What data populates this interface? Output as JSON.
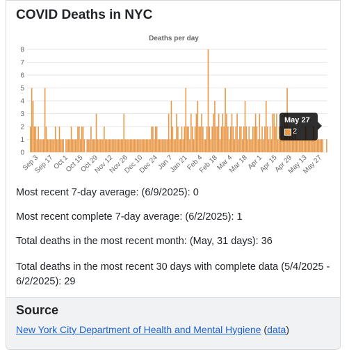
{
  "page": {
    "title": "COVID Deaths in NYC"
  },
  "colors": {
    "bar": "#e8994a",
    "bar_stroke": "#d9843a",
    "grid": "#e6e6e6",
    "link": "#1a5fd0"
  },
  "chart_data": {
    "type": "bar",
    "title": "Deaths per day",
    "xlabel": "",
    "ylabel": "",
    "ylim": [
      0,
      8
    ],
    "yticks": [
      0,
      1,
      2,
      3,
      4,
      5,
      6,
      7,
      8
    ],
    "grid": true,
    "tick_labels": [
      "Sep 3",
      "Sep 17",
      "Oct 1",
      "Oct 15",
      "Oct 29",
      "Nov 12",
      "Nov 26",
      "Dec 10",
      "Dec 24",
      "Jan 7",
      "Jan 21",
      "Feb 4",
      "Feb 18",
      "Mar 4",
      "Mar 18",
      "Apr 1",
      "Apr 15",
      "Apr 29",
      "May 13",
      "May 27"
    ],
    "values": [
      2,
      5,
      4,
      2,
      2,
      1,
      2,
      1,
      1,
      1,
      1,
      5,
      2,
      1,
      1,
      1,
      1,
      1,
      1,
      2,
      1,
      1,
      2,
      1,
      1,
      1,
      0,
      1,
      1,
      1,
      1,
      2,
      1,
      1,
      1,
      1,
      2,
      2,
      1,
      2,
      2,
      1,
      0,
      1,
      1,
      1,
      2,
      1,
      1,
      1,
      3,
      1,
      1,
      1,
      1,
      1,
      2,
      1,
      1,
      1,
      1,
      1,
      1,
      1,
      1,
      1,
      1,
      1,
      1,
      1,
      1,
      3,
      1,
      1,
      1,
      1,
      1,
      1,
      1,
      1,
      1,
      1,
      1,
      1,
      1,
      1,
      1,
      1,
      1,
      1,
      1,
      1,
      2,
      2,
      1,
      2,
      2,
      1,
      1,
      1,
      1,
      1,
      1,
      1,
      1,
      3,
      1,
      4,
      2,
      1,
      1,
      3,
      2,
      1,
      1,
      2,
      1,
      2,
      5,
      2,
      2,
      1,
      3,
      2,
      1,
      2,
      3,
      4,
      2,
      2,
      3,
      2,
      1,
      1,
      2,
      8,
      2,
      1,
      2,
      3,
      4,
      2,
      2,
      3,
      1,
      2,
      3,
      2,
      5,
      3,
      2,
      1,
      2,
      3,
      2,
      1,
      2,
      3,
      1,
      2,
      2,
      1,
      2,
      4,
      2,
      1,
      2,
      1,
      1,
      2,
      2,
      3,
      2,
      1,
      3,
      1,
      2,
      1,
      2,
      4,
      2,
      1,
      2,
      1,
      3,
      3,
      2,
      3,
      1,
      2,
      1,
      2,
      1,
      3,
      2,
      5,
      1,
      2,
      1,
      2,
      1,
      2,
      1,
      1,
      1,
      1,
      1,
      1,
      1,
      2,
      1,
      1,
      1,
      1,
      1,
      2,
      1,
      1,
      1,
      1,
      1,
      1,
      1,
      0,
      0,
      1
    ],
    "tooltip": {
      "label": "May 27",
      "value": "2"
    }
  },
  "stats": {
    "avg7": "Most recent 7-day average: (6/9/2025): 0",
    "avg7_complete": "Most recent complete 7-day average: (6/2/2025): 1",
    "month_total": "Total deaths in the most recent month: (May, 31 days): 36",
    "days30_total": "Total deaths in the most recent 30 days with complete data (5/4/2025 - 6/2/2025): 29"
  },
  "source": {
    "heading": "Source",
    "link_text": "New York City Department of Health and Mental Hygiene",
    "open_paren": " (",
    "data_link": "data",
    "close_paren": ")"
  }
}
